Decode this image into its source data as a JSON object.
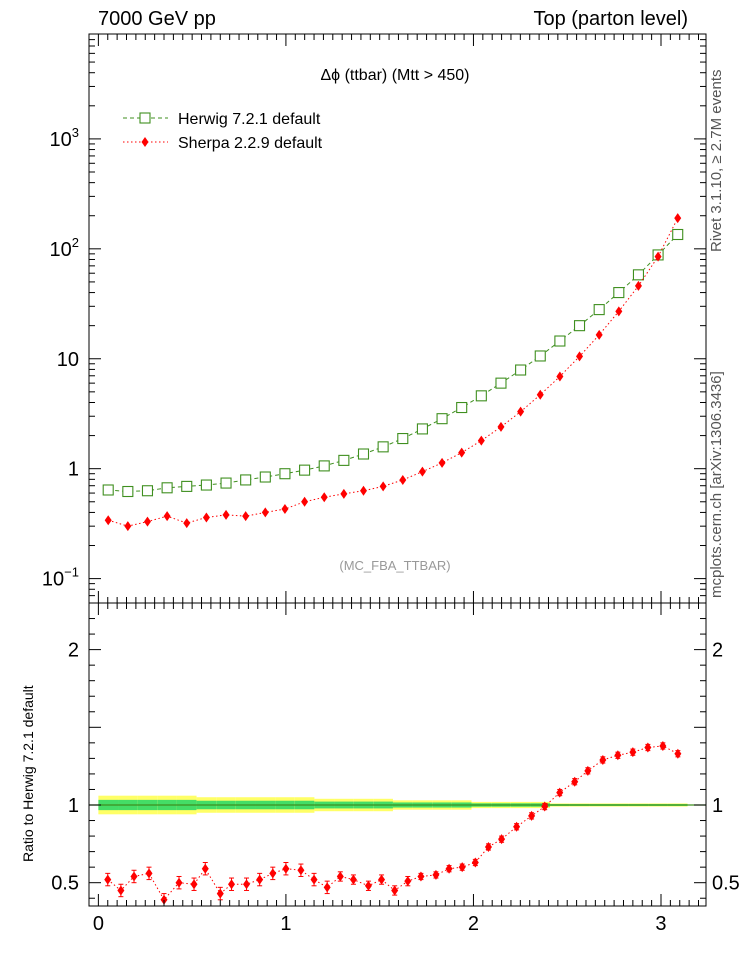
{
  "header": {
    "left": "7000 GeV pp",
    "right": "Top (parton level)"
  },
  "side_labels": {
    "top": "Rivet 3.1.10, ≥ 2.7M events",
    "bottom": "mcplots.cern.ch [arXiv:1306.3436]"
  },
  "chart_data": {
    "type": "scatter",
    "title": "Δϕ (ttbar) (Mtt > 450)",
    "analysis_label": "(MC_FBA_TTBAR)",
    "ratio_ylabel": "Ratio to Herwig 7.2.1 default",
    "xlim": [
      -0.05,
      3.24
    ],
    "main_ylim": [
      0.06,
      9000
    ],
    "main_yscale": "log",
    "ratio_ylim": [
      0.35,
      2.3
    ],
    "main_yticks": [
      {
        "value": 0.1,
        "base": "10",
        "exp": "−1"
      },
      {
        "value": 1,
        "base": "1",
        "exp": ""
      },
      {
        "value": 10,
        "base": "10",
        "exp": ""
      },
      {
        "value": 100,
        "base": "10",
        "exp": "2"
      },
      {
        "value": 1000,
        "base": "10",
        "exp": "3"
      }
    ],
    "ratio_yticks": [
      0.5,
      1,
      2
    ],
    "ratio_ytick_labels": [
      "0.5",
      "1",
      "2"
    ],
    "xticks": [
      0,
      1,
      2,
      3
    ],
    "xtick_labels": [
      "0",
      "1",
      "2",
      "3"
    ],
    "legend_placement": "top-left",
    "x": [
      0.0524,
      0.1571,
      0.2618,
      0.3665,
      0.4712,
      0.576,
      0.6807,
      0.7854,
      0.8901,
      0.9948,
      1.0996,
      1.2043,
      1.309,
      1.4137,
      1.5184,
      1.6232,
      1.7279,
      1.8326,
      1.9373,
      2.042,
      2.1468,
      2.2515,
      2.3562,
      2.4609,
      2.5656,
      2.6704,
      2.7751,
      2.8798,
      2.9845,
      3.0892
    ],
    "x_ratio": [
      0.05,
      0.12,
      0.19,
      0.27,
      0.35,
      0.43,
      0.51,
      0.57,
      0.65,
      0.71,
      0.79,
      0.86,
      0.93,
      1.0,
      1.08,
      1.15,
      1.22,
      1.29,
      1.36,
      1.44,
      1.51,
      1.58,
      1.65,
      1.72,
      1.8,
      1.87,
      1.94,
      2.01,
      2.08,
      2.15,
      2.23,
      2.31,
      2.38,
      2.46,
      2.54,
      2.61,
      2.69,
      2.77,
      2.85,
      2.93,
      3.01,
      3.09
    ],
    "series": [
      {
        "name": "Herwig 7.2.1 default",
        "color": "#3f8f1f",
        "marker": "open-square",
        "values": [
          0.64,
          0.62,
          0.63,
          0.67,
          0.69,
          0.71,
          0.74,
          0.79,
          0.84,
          0.9,
          0.97,
          1.06,
          1.19,
          1.36,
          1.58,
          1.88,
          2.3,
          2.85,
          3.6,
          4.6,
          6.0,
          7.9,
          10.6,
          14.5,
          20.0,
          28.0,
          40.0,
          58.0,
          88.0,
          135.0
        ]
      },
      {
        "name": "Sherpa 2.2.9 default",
        "color": "#ff0000",
        "marker": "filled-diamond",
        "values": [
          0.34,
          0.3,
          0.33,
          0.37,
          0.32,
          0.36,
          0.38,
          0.37,
          0.4,
          0.43,
          0.5,
          0.55,
          0.59,
          0.63,
          0.69,
          0.79,
          0.94,
          1.13,
          1.4,
          1.8,
          2.4,
          3.3,
          4.7,
          6.9,
          10.5,
          16.5,
          27.0,
          46.0,
          85.0,
          190.0
        ],
        "ratio": [
          0.52,
          0.45,
          0.54,
          0.56,
          0.39,
          0.5,
          0.49,
          0.59,
          0.43,
          0.49,
          0.49,
          0.52,
          0.56,
          0.59,
          0.58,
          0.52,
          0.47,
          0.54,
          0.52,
          0.48,
          0.52,
          0.45,
          0.51,
          0.54,
          0.55,
          0.59,
          0.6,
          0.63,
          0.73,
          0.78,
          0.86,
          0.93,
          0.99,
          1.08,
          1.15,
          1.22,
          1.29,
          1.32,
          1.34,
          1.37,
          1.38,
          1.33
        ],
        "ratio_err": [
          0.04,
          0.04,
          0.04,
          0.04,
          0.04,
          0.04,
          0.04,
          0.04,
          0.04,
          0.04,
          0.04,
          0.04,
          0.04,
          0.04,
          0.04,
          0.04,
          0.04,
          0.03,
          0.03,
          0.03,
          0.03,
          0.03,
          0.03,
          0.02,
          0.02,
          0.02,
          0.02,
          0.02,
          0.02,
          0.02,
          0.02,
          0.02,
          0.02,
          0.02,
          0.02,
          0.02,
          0.02,
          0.02,
          0.02,
          0.02,
          0.02,
          0.02
        ]
      }
    ],
    "ratio_band": {
      "reference": 1,
      "inner_color": "#44dd66",
      "outer_color": "#ffff66",
      "halfwidth": [
        0.06,
        0.06,
        0.06,
        0.06,
        0.06,
        0.05,
        0.05,
        0.05,
        0.05,
        0.05,
        0.05,
        0.04,
        0.04,
        0.04,
        0.04,
        0.03,
        0.03,
        0.03,
        0.03,
        0.02,
        0.02,
        0.02,
        0.02,
        0.01,
        0.01,
        0.01,
        0.01,
        0.01,
        0.01,
        0.01
      ]
    }
  }
}
